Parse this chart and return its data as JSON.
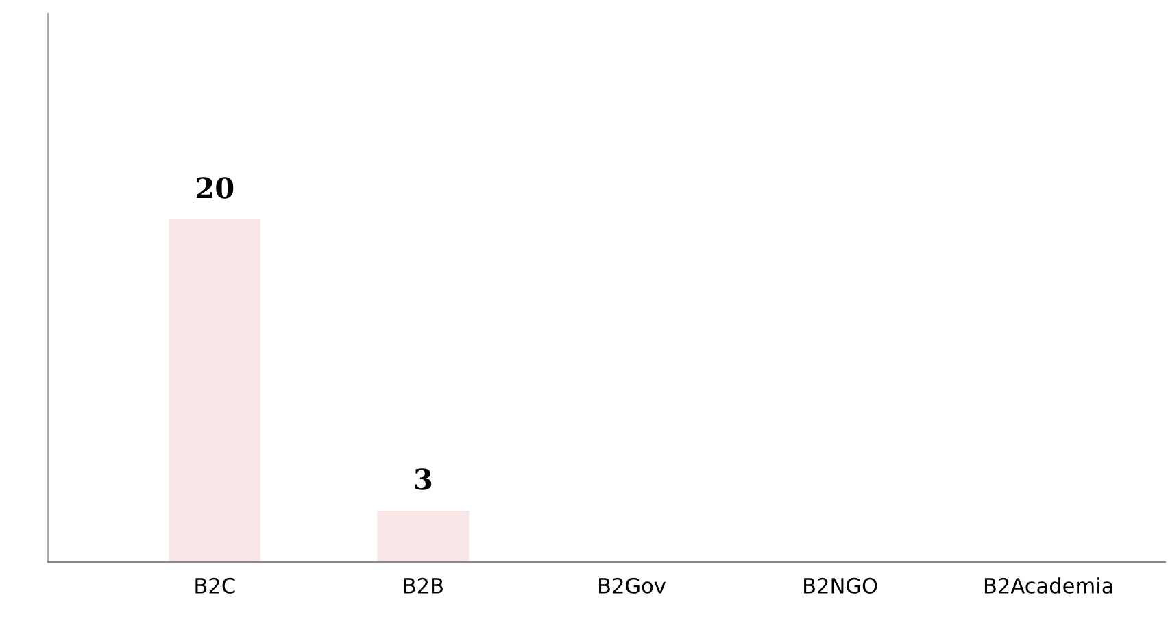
{
  "chart_data": {
    "type": "bar",
    "categories": [
      "B2C",
      "B2B",
      "B2Gov",
      "B2NGO",
      "B2Academia"
    ],
    "values": [
      20,
      3,
      0,
      0,
      0
    ],
    "value_labels": [
      "20",
      "3",
      null,
      null,
      null
    ],
    "color": "#f9e6e6",
    "ylim": [
      0,
      32
    ],
    "tick_labels": "x",
    "grid": false,
    "legend": false
  }
}
